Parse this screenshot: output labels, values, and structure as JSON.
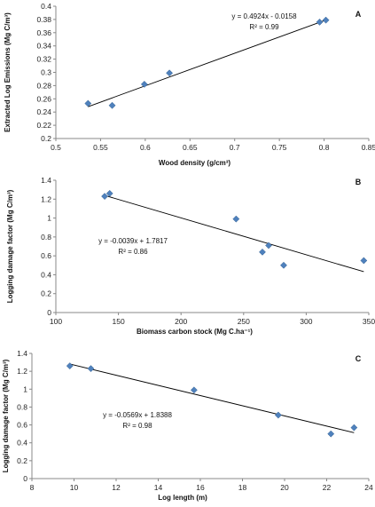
{
  "chart_data": [
    {
      "type": "scatter",
      "panel_label": "A",
      "xlabel": "Wood density (g/cm³)",
      "ylabel": "Extracted Log Emissions (Mg C/m³)",
      "xlim": [
        0.5,
        0.85
      ],
      "ylim": [
        0.2,
        0.4
      ],
      "x_ticks": [
        0.5,
        0.55,
        0.6,
        0.65,
        0.7,
        0.75,
        0.8,
        0.85
      ],
      "y_ticks": [
        0.2,
        0.22,
        0.24,
        0.26,
        0.28,
        0.3,
        0.32,
        0.34,
        0.36,
        0.38,
        0.4
      ],
      "x_tick_labels": [
        "0.5",
        "0.55",
        "0.6",
        "0.65",
        "0.7",
        "0.75",
        "0.8",
        "0.85"
      ],
      "y_tick_labels": [
        "0.2",
        "0.22",
        "0.24",
        "0.26",
        "0.28",
        "0.3",
        "0.32",
        "0.34",
        "0.36",
        "0.38",
        "0.4"
      ],
      "points": [
        {
          "x": 0.536,
          "y": 0.253
        },
        {
          "x": 0.563,
          "y": 0.25
        },
        {
          "x": 0.599,
          "y": 0.282
        },
        {
          "x": 0.627,
          "y": 0.299
        },
        {
          "x": 0.795,
          "y": 0.376
        },
        {
          "x": 0.802,
          "y": 0.379
        }
      ],
      "trendline": {
        "slope": 0.4924,
        "intercept": -0.0158,
        "x_range": [
          0.536,
          0.802
        ]
      },
      "equation": "y = 0.4924x - 0.0158",
      "r_squared": "R² = 0.99",
      "grid": false,
      "marker_color": "#4f81bd"
    },
    {
      "type": "scatter",
      "panel_label": "B",
      "xlabel": "Biomass carbon stock (Mg C.ha⁻¹)",
      "ylabel": "Logging damage factor (Mg C/m³)",
      "xlim": [
        100,
        350
      ],
      "ylim": [
        0,
        1.4
      ],
      "x_ticks": [
        100,
        150,
        200,
        250,
        300,
        350
      ],
      "y_ticks": [
        0,
        0.2,
        0.4,
        0.6,
        0.8,
        1,
        1.2,
        1.4
      ],
      "x_tick_labels": [
        "100",
        "150",
        "200",
        "250",
        "300",
        "350"
      ],
      "y_tick_labels": [
        "0",
        "0.2",
        "0.4",
        "0.6",
        "0.8",
        "1",
        "1.2",
        "1.4"
      ],
      "points": [
        {
          "x": 139,
          "y": 1.23
        },
        {
          "x": 143,
          "y": 1.26
        },
        {
          "x": 244,
          "y": 0.99
        },
        {
          "x": 265,
          "y": 0.64
        },
        {
          "x": 270,
          "y": 0.71
        },
        {
          "x": 282,
          "y": 0.5
        },
        {
          "x": 346,
          "y": 0.55
        }
      ],
      "trendline": {
        "slope": -0.0039,
        "intercept": 1.7817,
        "x_range": [
          139,
          346
        ]
      },
      "equation": "y = -0.0039x + 1.7817",
      "r_squared": "R² = 0.86",
      "grid": false,
      "marker_color": "#4f81bd"
    },
    {
      "type": "scatter",
      "panel_label": "C",
      "xlabel": "Log length (m)",
      "ylabel": "Logging damage factor (Mg C/m³)",
      "xlim": [
        8,
        24
      ],
      "ylim": [
        0,
        1.4
      ],
      "x_ticks": [
        8,
        10,
        12,
        14,
        16,
        18,
        20,
        22,
        24
      ],
      "y_ticks": [
        0,
        0.2,
        0.4,
        0.6,
        0.8,
        1,
        1.2,
        1.4
      ],
      "x_tick_labels": [
        "8",
        "10",
        "12",
        "14",
        "16",
        "18",
        "20",
        "22",
        "24"
      ],
      "y_tick_labels": [
        "0",
        "0.2",
        "0.4",
        "0.6",
        "0.8",
        "1",
        "1.2",
        "1.4"
      ],
      "points": [
        {
          "x": 9.8,
          "y": 1.26
        },
        {
          "x": 10.8,
          "y": 1.23
        },
        {
          "x": 15.7,
          "y": 0.99
        },
        {
          "x": 19.7,
          "y": 0.71
        },
        {
          "x": 22.2,
          "y": 0.5
        },
        {
          "x": 23.3,
          "y": 0.57
        }
      ],
      "trendline": {
        "slope": -0.0569,
        "intercept": 1.8388,
        "x_range": [
          9.8,
          23.3
        ]
      },
      "equation": "y = -0.0569x + 1.8388",
      "r_squared": "R² = 0.98",
      "grid": false,
      "marker_color": "#4f81bd"
    }
  ]
}
